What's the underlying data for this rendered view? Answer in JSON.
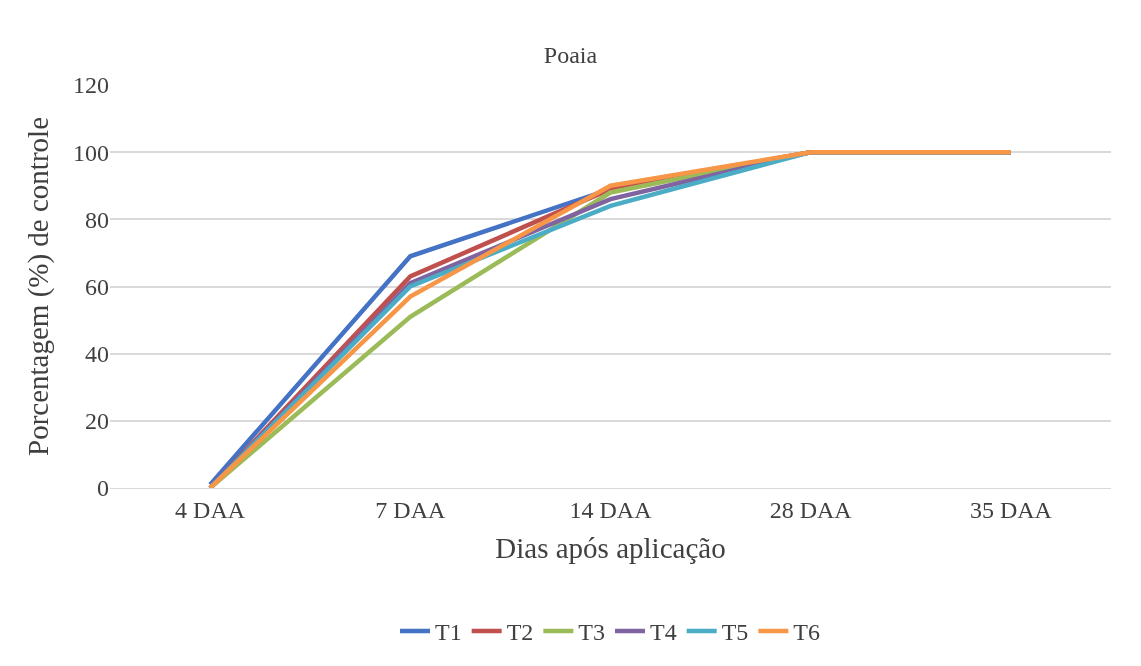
{
  "chart_data": {
    "type": "line",
    "title": "Poaia",
    "xlabel": "Dias após aplicação",
    "ylabel": "Porcentagem (%) de controle",
    "categories": [
      "4 DAA",
      "7 DAA",
      "14 DAA",
      "28 DAA",
      "35 DAA"
    ],
    "series": [
      {
        "name": "T1",
        "color": "#4472c4",
        "values": [
          1,
          69,
          89,
          100,
          100
        ]
      },
      {
        "name": "T2",
        "color": "#c0504d",
        "values": [
          0,
          63,
          89,
          100,
          100
        ]
      },
      {
        "name": "T3",
        "color": "#9bbb59",
        "values": [
          0,
          51,
          88,
          100,
          100
        ]
      },
      {
        "name": "T4",
        "color": "#8064a2",
        "values": [
          0,
          61,
          86,
          100,
          100
        ]
      },
      {
        "name": "T5",
        "color": "#4bacc6",
        "values": [
          0,
          60,
          84,
          100,
          100
        ]
      },
      {
        "name": "T6",
        "color": "#f79646",
        "values": [
          0,
          57,
          90,
          100,
          100
        ]
      }
    ],
    "ylim": [
      0,
      120
    ],
    "yticks": [
      0,
      20,
      40,
      60,
      80,
      100,
      120
    ],
    "grid": "y",
    "legend": "bottom",
    "marker": "none",
    "line_style": "solid"
  }
}
